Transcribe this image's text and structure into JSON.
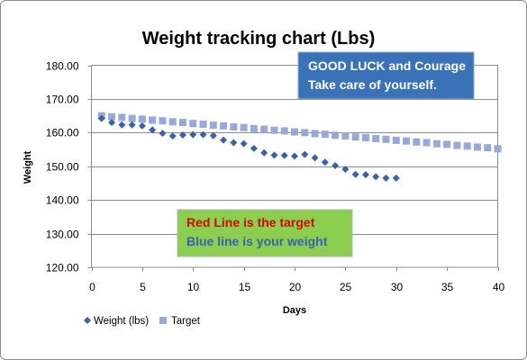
{
  "chart_data": {
    "type": "scatter",
    "title": "Weight tracking chart (Lbs)",
    "xlabel": "Days",
    "ylabel": "Weight",
    "xlim": [
      0,
      40
    ],
    "ylim": [
      120,
      180
    ],
    "xticks": [
      "0",
      "5",
      "10",
      "15",
      "20",
      "25",
      "30",
      "35",
      "40"
    ],
    "yticks": [
      "120.00",
      "130.00",
      "140.00",
      "150.00",
      "160.00",
      "170.00",
      "180.00"
    ],
    "grid": "horizontal",
    "legend": "bottom-left",
    "series": [
      {
        "name": "Weight (lbs)",
        "marker": "diamond",
        "color": "#3a62a8",
        "x": [
          1,
          2,
          3,
          4,
          5,
          6,
          7,
          8,
          9,
          10,
          11,
          12,
          13,
          14,
          15,
          16,
          17,
          18,
          19,
          20,
          21,
          22,
          23,
          24,
          25,
          26,
          27,
          28,
          29,
          30
        ],
        "y": [
          164.2,
          163.0,
          162.3,
          162.3,
          162.0,
          160.8,
          159.8,
          159.0,
          159.3,
          159.4,
          159.4,
          159.1,
          157.8,
          157.0,
          156.7,
          155.3,
          154.0,
          153.3,
          153.2,
          153.0,
          153.5,
          152.5,
          151.2,
          150.2,
          149.1,
          147.6,
          147.5,
          146.9,
          146.5,
          146.5
        ]
      },
      {
        "name": "Target",
        "marker": "square",
        "color": "#98a8d8",
        "x": [
          1,
          2,
          3,
          4,
          5,
          6,
          7,
          8,
          9,
          10,
          11,
          12,
          13,
          14,
          15,
          16,
          17,
          18,
          19,
          20,
          21,
          22,
          23,
          24,
          25,
          26,
          27,
          28,
          29,
          30,
          31,
          32,
          33,
          34,
          35,
          36,
          37,
          38,
          39,
          40
        ],
        "y": [
          165.0,
          164.7,
          164.5,
          164.2,
          164.0,
          163.7,
          163.5,
          163.2,
          163.0,
          162.7,
          162.5,
          162.2,
          162.0,
          161.7,
          161.5,
          161.2,
          161.0,
          160.7,
          160.5,
          160.2,
          160.0,
          159.7,
          159.5,
          159.2,
          159.0,
          158.7,
          158.5,
          158.2,
          158.0,
          157.7,
          157.5,
          157.2,
          157.0,
          156.7,
          156.5,
          156.2,
          156.0,
          155.7,
          155.5,
          155.2
        ]
      }
    ],
    "annotations": [
      {
        "lines": [
          "GOOD LUCK and Courage",
          "Take care of yourself."
        ],
        "background": "#3a72b8",
        "text_color": "#ffffff"
      },
      {
        "lines": [
          "Red Line is the target",
          "Blue line is your weight"
        ],
        "line_colors": [
          "#e00000",
          "#3a62a8"
        ],
        "background": "#8ccf50"
      }
    ]
  }
}
